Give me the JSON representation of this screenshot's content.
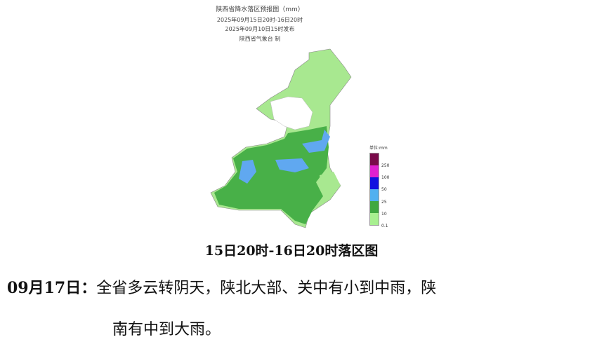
{
  "map_header": {
    "title": "陕西省降水落区预报图（mm）",
    "period": "2025年09月15日20时-16日20时",
    "issued": "2025年09月10日15时发布",
    "issuer": "陕西省气象台 制"
  },
  "legend": {
    "unit": "单位:mm",
    "colors": [
      "#7a0a4a",
      "#e020d0",
      "#1010e0",
      "#50b0f0",
      "#40a840",
      "#a8f090"
    ],
    "labels": [
      "250",
      "100",
      "50",
      "25",
      "10",
      "0.1"
    ]
  },
  "caption": "15日20时-16日20时落区图",
  "forecast": {
    "date": "09月17日：",
    "text_line1": "全省多云转阴天，陕北大部、关中有小到中雨，陕",
    "text_line2": "南有中到大雨。"
  }
}
